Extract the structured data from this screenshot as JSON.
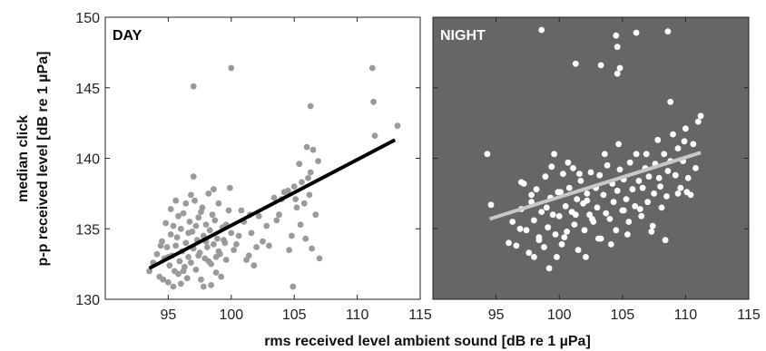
{
  "chart_data": [
    {
      "type": "scatter",
      "title": "DAY",
      "xlim": [
        90,
        115
      ],
      "ylim": [
        130,
        150
      ],
      "xticks": [
        95,
        100,
        105,
        110,
        115
      ],
      "yticks": [
        130,
        135,
        140,
        145,
        150
      ],
      "background": "#ffffff",
      "point_color": "#9a9a9a",
      "line_color": "#000000",
      "title_color": "#000000",
      "points": [
        [
          93.5,
          132.0
        ],
        [
          93.8,
          132.6
        ],
        [
          94.1,
          133.2
        ],
        [
          94.3,
          131.6
        ],
        [
          94.5,
          134.1
        ],
        [
          94.7,
          132.9
        ],
        [
          94.9,
          133.7
        ],
        [
          95.0,
          131.2
        ],
        [
          95.1,
          132.4
        ],
        [
          95.2,
          134.6
        ],
        [
          95.3,
          133.1
        ],
        [
          95.4,
          135.2
        ],
        [
          95.5,
          132.0
        ],
        [
          95.6,
          133.8
        ],
        [
          95.7,
          134.4
        ],
        [
          95.8,
          131.8
        ],
        [
          95.9,
          132.7
        ],
        [
          96.0,
          135.0
        ],
        [
          96.1,
          133.4
        ],
        [
          96.2,
          136.1
        ],
        [
          96.3,
          132.3
        ],
        [
          96.4,
          134.0
        ],
        [
          96.5,
          131.5
        ],
        [
          96.6,
          133.0
        ],
        [
          96.7,
          135.5
        ],
        [
          96.8,
          132.6
        ],
        [
          96.9,
          134.8
        ],
        [
          97.0,
          133.6
        ],
        [
          97.1,
          137.0
        ],
        [
          97.2,
          132.1
        ],
        [
          97.3,
          134.2
        ],
        [
          97.4,
          135.8
        ],
        [
          97.5,
          133.3
        ],
        [
          97.6,
          131.4
        ],
        [
          97.7,
          136.5
        ],
        [
          97.8,
          134.5
        ],
        [
          97.9,
          132.9
        ],
        [
          98.0,
          135.3
        ],
        [
          98.1,
          133.7
        ],
        [
          98.2,
          137.5
        ],
        [
          98.3,
          134.9
        ],
        [
          98.4,
          132.5
        ],
        [
          98.5,
          136.0
        ],
        [
          98.6,
          133.9
        ],
        [
          98.7,
          135.6
        ],
        [
          98.8,
          131.9
        ],
        [
          98.9,
          134.3
        ],
        [
          99.0,
          136.8
        ],
        [
          99.1,
          133.2
        ],
        [
          99.3,
          135.1
        ],
        [
          99.5,
          134.0
        ],
        [
          99.6,
          132.8
        ],
        [
          99.8,
          136.3
        ],
        [
          100.0,
          134.7
        ],
        [
          100.2,
          133.5
        ],
        [
          95.2,
          136.4
        ],
        [
          95.6,
          137.0
        ],
        [
          96.0,
          131.1
        ],
        [
          96.4,
          136.8
        ],
        [
          97.0,
          138.7
        ],
        [
          97.0,
          145.1
        ],
        [
          97.8,
          130.9
        ],
        [
          98.6,
          137.8
        ],
        [
          99.2,
          131.6
        ],
        [
          94.8,
          135.4
        ],
        [
          95.4,
          130.9
        ],
        [
          96.8,
          137.4
        ],
        [
          97.6,
          136.2
        ],
        [
          98.4,
          131.0
        ],
        [
          99.9,
          137.9
        ],
        [
          100.0,
          146.4
        ],
        [
          100.6,
          134.5
        ],
        [
          101.0,
          135.5
        ],
        [
          101.2,
          132.8
        ],
        [
          101.5,
          136.0
        ],
        [
          102.0,
          133.7
        ],
        [
          102.2,
          135.9
        ],
        [
          102.5,
          134.1
        ],
        [
          103.0,
          133.8
        ],
        [
          103.4,
          137.2
        ],
        [
          103.8,
          136.0
        ],
        [
          104.2,
          137.6
        ],
        [
          104.5,
          137.7
        ],
        [
          104.8,
          134.5
        ],
        [
          105.0,
          138.0
        ],
        [
          105.2,
          136.5
        ],
        [
          105.4,
          139.6
        ],
        [
          105.6,
          138.3
        ],
        [
          105.8,
          136.8
        ],
        [
          106.0,
          140.8
        ],
        [
          106.2,
          137.4
        ],
        [
          106.3,
          139.0
        ],
        [
          106.5,
          140.6
        ],
        [
          106.7,
          136.0
        ],
        [
          106.9,
          139.8
        ],
        [
          105.9,
          134.3
        ],
        [
          105.5,
          135.3
        ],
        [
          104.6,
          133.5
        ],
        [
          104.9,
          130.9
        ],
        [
          106.3,
          143.7
        ],
        [
          106.4,
          133.6
        ],
        [
          107.0,
          132.9
        ],
        [
          101.8,
          132.4
        ],
        [
          101.4,
          133.1
        ],
        [
          111.2,
          146.4
        ],
        [
          111.3,
          144.0
        ],
        [
          111.4,
          141.6
        ],
        [
          113.2,
          142.3
        ],
        [
          94.4,
          133.8
        ],
        [
          95.8,
          135.9
        ],
        [
          96.6,
          134.7
        ],
        [
          97.4,
          133.1
        ],
        [
          98.2,
          132.7
        ],
        [
          99.0,
          133.4
        ],
        [
          99.4,
          134.2
        ],
        [
          100.4,
          133.9
        ],
        [
          94.6,
          131.4
        ],
        [
          95.0,
          133.0
        ],
        [
          96.2,
          132.0
        ],
        [
          97.2,
          135.2
        ],
        [
          98.0,
          134.1
        ],
        [
          98.8,
          133.0
        ],
        [
          99.6,
          135.3
        ],
        [
          100.8,
          136.3
        ],
        [
          101.6,
          134.7
        ],
        [
          102.8,
          135.2
        ],
        [
          103.6,
          135.6
        ],
        [
          104.0,
          137.1
        ],
        [
          105.1,
          137.1
        ],
        [
          106.1,
          138.6
        ]
      ],
      "fit": {
        "x": [
          93.5,
          113.0
        ],
        "y": [
          132.2,
          141.3
        ]
      }
    },
    {
      "type": "scatter",
      "title": "NIGHT",
      "xlim": [
        90,
        115
      ],
      "ylim": [
        130,
        150
      ],
      "xticks": [
        95,
        100,
        105,
        110,
        115
      ],
      "yticks": [
        130,
        135,
        140,
        145,
        150
      ],
      "background": "#666666",
      "point_color": "#ffffff",
      "line_color": "#c8c8c8",
      "title_color": "#ffffff",
      "points": [
        [
          94.3,
          140.3
        ],
        [
          94.6,
          136.7
        ],
        [
          96.0,
          134.0
        ],
        [
          96.3,
          135.5
        ],
        [
          96.6,
          133.8
        ],
        [
          97.0,
          136.4
        ],
        [
          97.2,
          138.2
        ],
        [
          97.4,
          134.9
        ],
        [
          97.6,
          133.3
        ],
        [
          97.8,
          136.9
        ],
        [
          98.0,
          135.6
        ],
        [
          98.2,
          137.8
        ],
        [
          98.4,
          134.4
        ],
        [
          98.6,
          136.2
        ],
        [
          98.8,
          133.7
        ],
        [
          98.9,
          138.7
        ],
        [
          99.1,
          135.1
        ],
        [
          99.2,
          132.2
        ],
        [
          99.3,
          137.2
        ],
        [
          99.5,
          136.0
        ],
        [
          99.6,
          140.3
        ],
        [
          99.7,
          134.6
        ],
        [
          99.9,
          137.6
        ],
        [
          100.0,
          135.9
        ],
        [
          100.2,
          133.9
        ],
        [
          100.3,
          138.9
        ],
        [
          100.5,
          136.6
        ],
        [
          100.6,
          134.8
        ],
        [
          100.8,
          137.9
        ],
        [
          101.0,
          136.2
        ],
        [
          101.1,
          139.3
        ],
        [
          101.2,
          135.3
        ],
        [
          101.4,
          137.1
        ],
        [
          101.5,
          133.5
        ],
        [
          101.7,
          138.4
        ],
        [
          101.9,
          136.8
        ],
        [
          102.0,
          134.9
        ],
        [
          102.2,
          137.5
        ],
        [
          102.4,
          136.0
        ],
        [
          102.5,
          139.0
        ],
        [
          102.7,
          135.5
        ],
        [
          102.9,
          137.9
        ],
        [
          103.0,
          136.5
        ],
        [
          103.2,
          138.8
        ],
        [
          103.3,
          134.3
        ],
        [
          103.5,
          137.4
        ],
        [
          103.7,
          136.1
        ],
        [
          103.8,
          139.5
        ],
        [
          104.0,
          135.7
        ],
        [
          104.2,
          138.2
        ],
        [
          104.3,
          136.9
        ],
        [
          104.5,
          134.9
        ],
        [
          104.6,
          137.7
        ],
        [
          104.8,
          139.2
        ],
        [
          105.0,
          136.3
        ],
        [
          105.1,
          138.5
        ],
        [
          105.3,
          137.1
        ],
        [
          105.5,
          135.5
        ],
        [
          105.6,
          139.7
        ],
        [
          105.8,
          137.8
        ],
        [
          106.0,
          136.6
        ],
        [
          106.1,
          140.3
        ],
        [
          106.3,
          138.4
        ],
        [
          106.5,
          135.9
        ],
        [
          106.6,
          137.9
        ],
        [
          106.8,
          139.3
        ],
        [
          107.0,
          136.9
        ],
        [
          107.1,
          138.7
        ],
        [
          107.3,
          134.8
        ],
        [
          107.5,
          137.5
        ],
        [
          107.6,
          139.6
        ],
        [
          107.8,
          141.3
        ],
        [
          108.0,
          138.0
        ],
        [
          108.1,
          136.5
        ],
        [
          108.3,
          140.3
        ],
        [
          108.5,
          137.3
        ],
        [
          108.6,
          139.1
        ],
        [
          108.8,
          144.0
        ],
        [
          109.0,
          141.7
        ],
        [
          109.2,
          138.8
        ],
        [
          109.4,
          140.7
        ],
        [
          109.6,
          137.9
        ],
        [
          109.8,
          139.8
        ],
        [
          110.0,
          142.1
        ],
        [
          110.2,
          138.6
        ],
        [
          110.4,
          137.4
        ],
        [
          110.6,
          141.0
        ],
        [
          110.8,
          139.3
        ],
        [
          111.0,
          142.6
        ],
        [
          111.2,
          143.0
        ],
        [
          97.0,
          138.3
        ],
        [
          98.4,
          134.2
        ],
        [
          99.0,
          136.5
        ],
        [
          99.8,
          133.0
        ],
        [
          100.4,
          134.4
        ],
        [
          101.3,
          136.0
        ],
        [
          102.1,
          133.0
        ],
        [
          103.1,
          134.3
        ],
        [
          104.1,
          133.9
        ],
        [
          105.4,
          134.6
        ],
        [
          106.4,
          136.4
        ],
        [
          107.4,
          135.2
        ],
        [
          108.4,
          134.2
        ],
        [
          109.4,
          137.5
        ],
        [
          110.1,
          137.6
        ],
        [
          100.1,
          137.6
        ],
        [
          101.6,
          138.9
        ],
        [
          102.6,
          135.7
        ],
        [
          103.6,
          140.3
        ],
        [
          104.7,
          141.0
        ],
        [
          98.6,
          149.1
        ],
        [
          101.3,
          146.7
        ],
        [
          103.3,
          146.6
        ],
        [
          104.5,
          148.7
        ],
        [
          104.6,
          147.9
        ],
        [
          104.8,
          146.4
        ],
        [
          104.6,
          146.0
        ],
        [
          106.1,
          148.9
        ],
        [
          108.6,
          149.0
        ],
        [
          102.2,
          137.0
        ],
        [
          105.1,
          136.3
        ],
        [
          106.9,
          140.3
        ],
        [
          107.9,
          138.6
        ],
        [
          108.8,
          139.8
        ],
        [
          109.9,
          141.2
        ],
        [
          100.7,
          139.7
        ],
        [
          99.4,
          139.4
        ],
        [
          97.8,
          137.4
        ],
        [
          96.9,
          135.0
        ],
        [
          98.0,
          133.0
        ]
      ],
      "fit": {
        "x": [
          94.5,
          111.2
        ],
        "y": [
          135.7,
          140.4
        ]
      }
    }
  ],
  "axes": {
    "xlabel": "rms received level ambient sound [dB re 1 µPa]",
    "ylabel_line1": "median click",
    "ylabel_line2": "p-p received level [dB re 1 µPa]"
  }
}
